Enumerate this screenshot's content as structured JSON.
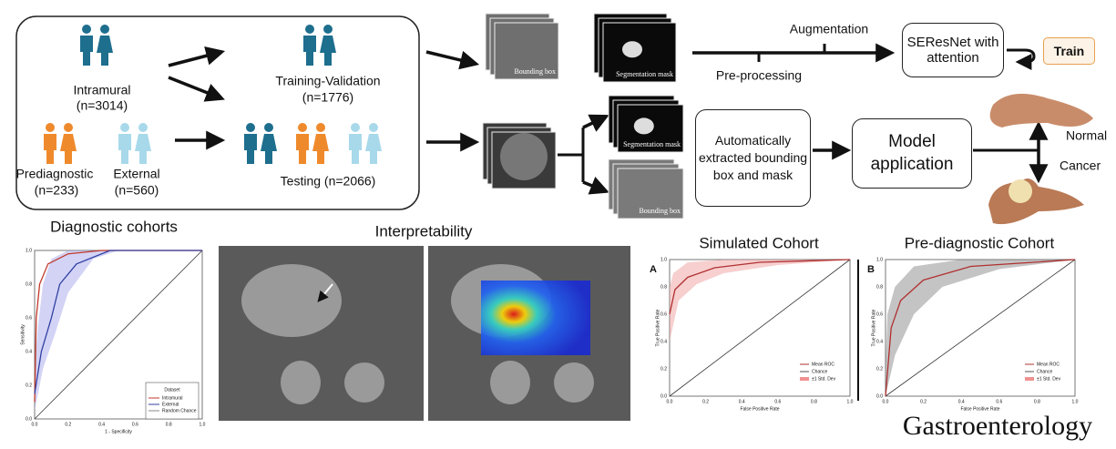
{
  "cohorts": {
    "intramural": "Intramural",
    "intramural_n": "(n=3014)",
    "prediagnostic": "Prediagnostic",
    "prediagnostic_n": "(n=233)",
    "external": "External",
    "external_n": "(n=560)"
  },
  "splits": {
    "training": "Training-Validation",
    "training_n": "(n=1776)",
    "testing": "Testing (n=2066)"
  },
  "images": {
    "bbox": "Bounding box",
    "mask": "Segmentation mask"
  },
  "pipeline": {
    "augmentation": "Augmentation",
    "preprocessing": "Pre-processing",
    "model": "SEResNet with attention",
    "train": "Train",
    "auto": "Automatically extracted bounding box and mask",
    "application": "Model application",
    "normal": "Normal",
    "cancer": "Cancer"
  },
  "panels": {
    "ticks": [
      "0.0",
      "0.2",
      "0.4",
      "0.6",
      "0.8",
      "1.0"
    ],
    "diagnostic": {
      "title": "Diagnostic cohorts",
      "xlabel": "1 - Specificity",
      "ylabel": "Sensitivity",
      "legend_title": "Dataset",
      "legend": [
        "Intramural",
        "External",
        "Random Chance"
      ]
    },
    "interpretability": {
      "title": "Interpretability"
    },
    "simulated": {
      "title": "Simulated Cohort",
      "letter": "A",
      "xlabel": "False Positive Rate",
      "ylabel": "True Positive Rate",
      "legend": [
        "Mean ROC",
        "Chance",
        "±1 Std. Dev"
      ]
    },
    "prediagnostic": {
      "title": "Pre-diagnostic Cohort",
      "letter": "B",
      "xlabel": "False Positive Rate",
      "ylabel": "True Positive Rate",
      "legend": [
        "Mean ROC",
        "Chance",
        "±1 Std. Dev"
      ]
    }
  },
  "journal": "Gastroenterology"
}
